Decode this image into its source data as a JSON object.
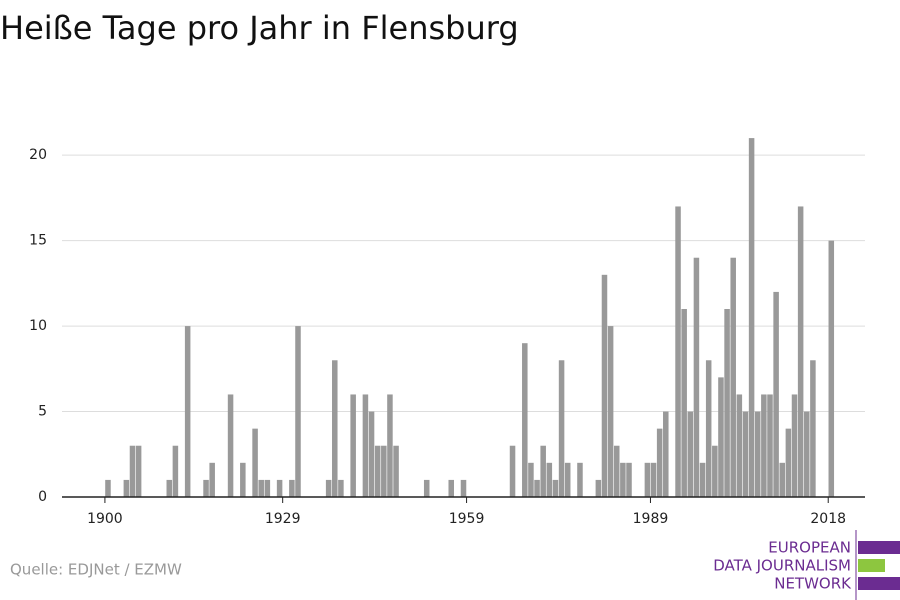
{
  "chart_data": {
    "type": "bar",
    "title": "Heiße Tage pro Jahr in Flensburg",
    "source": "Quelle: EDJNet / EZMW",
    "logo": [
      "EUROPEAN",
      "DATA JOURNALISM",
      "NETWORK"
    ],
    "color": "#999999",
    "x": [
      1900,
      1903,
      1904,
      1905,
      1910,
      1911,
      1913,
      1916,
      1917,
      1920,
      1922,
      1924,
      1925,
      1926,
      1928,
      1930,
      1931,
      1936,
      1937,
      1938,
      1940,
      1942,
      1943,
      1944,
      1945,
      1946,
      1947,
      1952,
      1956,
      1958,
      1966,
      1968,
      1969,
      1970,
      1971,
      1972,
      1973,
      1974,
      1975,
      1977,
      1980,
      1981,
      1982,
      1983,
      1984,
      1985,
      1988,
      1989,
      1990,
      1991,
      1993,
      1994,
      1995,
      1996,
      1997,
      1998,
      1999,
      2000,
      2001,
      2002,
      2003,
      2004,
      2005,
      2006,
      2007,
      2008,
      2009,
      2010,
      2011,
      2012,
      2013,
      2014,
      2015,
      2018
    ],
    "values": [
      1,
      1,
      3,
      3,
      1,
      3,
      10,
      1,
      2,
      6,
      2,
      4,
      1,
      1,
      1,
      1,
      10,
      1,
      8,
      1,
      6,
      6,
      5,
      3,
      3,
      6,
      3,
      1,
      1,
      1,
      3,
      9,
      2,
      1,
      3,
      2,
      1,
      8,
      2,
      2,
      1,
      13,
      10,
      3,
      2,
      2,
      2,
      2,
      4,
      5,
      17,
      11,
      5,
      14,
      2,
      8,
      3,
      7,
      11,
      14,
      6,
      5,
      21,
      5,
      6,
      6,
      12,
      2,
      4,
      6,
      17,
      5,
      8,
      15
    ],
    "xlim": [
      1893,
      2024
    ],
    "xticks": [
      1900,
      1929,
      1959,
      1989,
      2018
    ],
    "ylim": [
      0,
      22
    ],
    "yticks": [
      0,
      5,
      10,
      15,
      20
    ],
    "grid": true
  }
}
